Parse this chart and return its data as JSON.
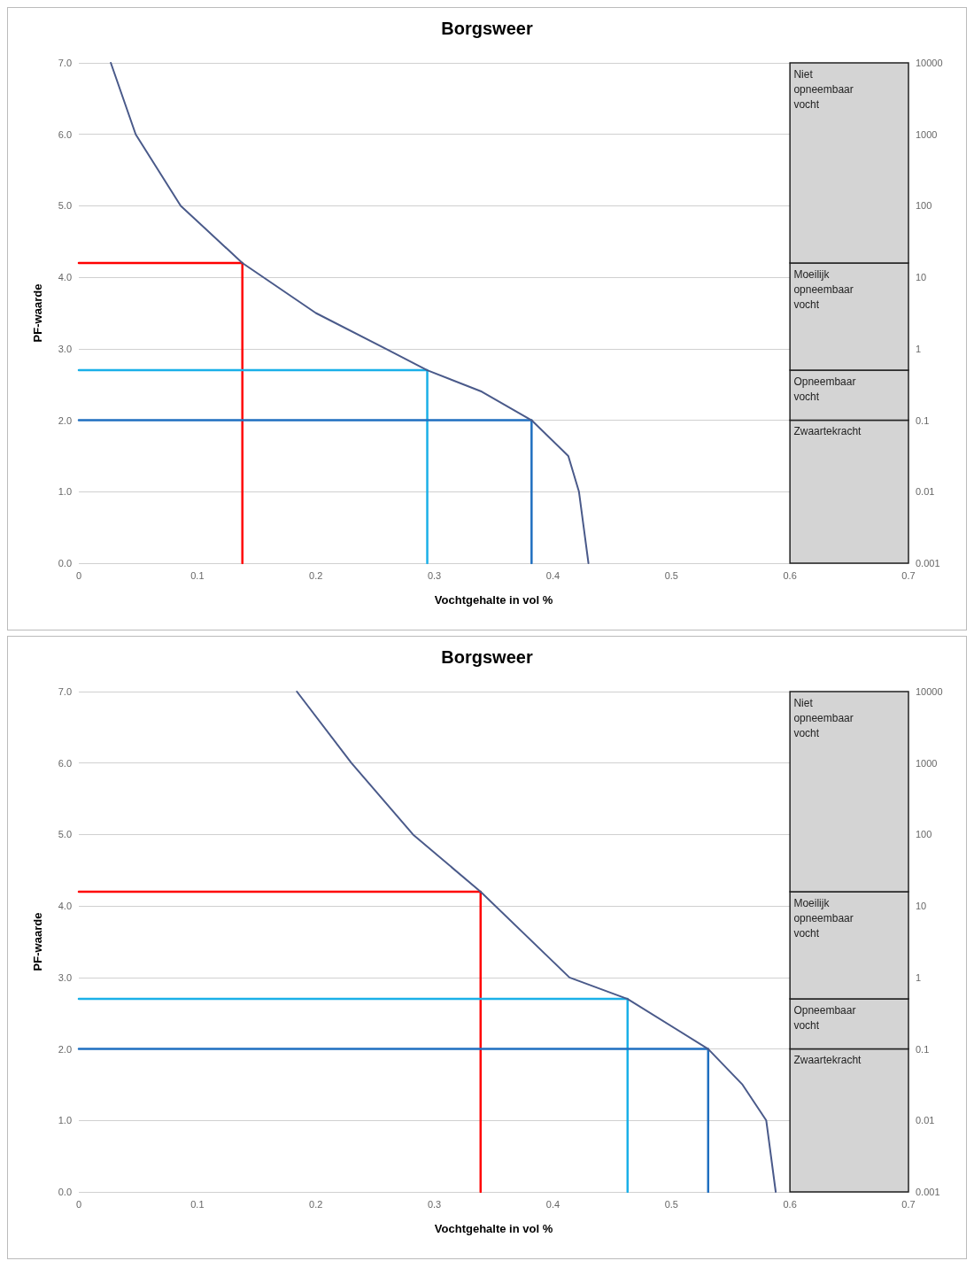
{
  "chart_data": [
    {
      "type": "line",
      "title": "Borgsweer",
      "xlabel": "Vochtgehalte in vol %",
      "ylabel": "PF-waarde",
      "xlim": [
        0,
        0.7
      ],
      "xticks": [
        0,
        0.1,
        0.2,
        0.3,
        0.4,
        0.5,
        0.6,
        0.7
      ],
      "ylim": [
        0,
        7
      ],
      "yticks": [
        {
          "value": 0,
          "label": "0.0"
        },
        {
          "value": 1,
          "label": "1.0"
        },
        {
          "value": 2,
          "label": "2.0"
        },
        {
          "value": 3,
          "label": "3.0"
        },
        {
          "value": 4,
          "label": "4.0"
        },
        {
          "value": 5,
          "label": "5.0"
        },
        {
          "value": 6,
          "label": "6.0"
        },
        {
          "value": 7,
          "label": "7.0"
        }
      ],
      "y2lim": [
        0.001,
        10000
      ],
      "y2ticks": [
        0.001,
        0.01,
        0.1,
        1,
        10,
        100,
        1000,
        10000
      ],
      "log": "y2",
      "grid": "y",
      "marker": "none",
      "line_style": "solid",
      "bands": [
        {
          "axis": "y",
          "from": 0,
          "to": 2,
          "label": "Zwaartekracht",
          "color": "#d4d4d4"
        },
        {
          "axis": "y",
          "from": 2,
          "to": 2.7,
          "label": "Opneembaar vocht",
          "color": "#d4d4d4"
        },
        {
          "axis": "y",
          "from": 2.7,
          "to": 4.2,
          "label": "Moeilijk opneembaar vocht",
          "color": "#d4d4d4"
        },
        {
          "axis": "y",
          "from": 4.2,
          "to": 7,
          "label": "Niet opneembaar vocht",
          "color": "#d4d4d4"
        }
      ],
      "series": [
        {
          "color": "#4a5a8a",
          "x": [
            0.027,
            0.048,
            0.086,
            0.138,
            0.2,
            0.259,
            0.294,
            0.34,
            0.382,
            0.413,
            0.422,
            0.426,
            0.43
          ],
          "values": [
            7,
            6,
            5,
            4.2,
            3.5,
            3,
            2.7,
            2.4,
            2,
            1.5,
            1,
            0.5,
            0
          ]
        },
        {
          "color": "#ff0000",
          "x": [
            0,
            0.138,
            0.138
          ],
          "values": [
            4.2,
            4.2,
            0
          ]
        },
        {
          "color": "#1ab0e8",
          "x": [
            0,
            0.294,
            0.294
          ],
          "values": [
            2.7,
            2.7,
            0
          ]
        },
        {
          "color": "#1f6fc0",
          "x": [
            0,
            0.382,
            0.382
          ],
          "values": [
            2,
            2,
            0
          ]
        }
      ]
    },
    {
      "type": "line",
      "title": "Borgsweer",
      "xlabel": "Vochtgehalte in vol %",
      "ylabel": "PF-waarde",
      "xlim": [
        0,
        0.7
      ],
      "xticks": [
        0,
        0.1,
        0.2,
        0.3,
        0.4,
        0.5,
        0.6,
        0.7
      ],
      "ylim": [
        0,
        7
      ],
      "yticks": [
        {
          "value": 0,
          "label": "0.0"
        },
        {
          "value": 1,
          "label": "1.0"
        },
        {
          "value": 2,
          "label": "2.0"
        },
        {
          "value": 3,
          "label": "3.0"
        },
        {
          "value": 4,
          "label": "4.0"
        },
        {
          "value": 5,
          "label": "5.0"
        },
        {
          "value": 6,
          "label": "6.0"
        },
        {
          "value": 7,
          "label": "7.0"
        }
      ],
      "y2lim": [
        0.001,
        10000
      ],
      "y2ticks": [
        0.001,
        0.01,
        0.1,
        1,
        10,
        100,
        1000,
        10000
      ],
      "log": "y2",
      "grid": "y",
      "marker": "none",
      "line_style": "solid",
      "bands": [
        {
          "axis": "y",
          "from": 0,
          "to": 2,
          "label": "Zwaartekracht",
          "color": "#d4d4d4"
        },
        {
          "axis": "y",
          "from": 2,
          "to": 2.7,
          "label": "Opneembaar vocht",
          "color": "#d4d4d4"
        },
        {
          "axis": "y",
          "from": 2.7,
          "to": 4.2,
          "label": "Moeilijk opneembaar vocht",
          "color": "#d4d4d4"
        },
        {
          "axis": "y",
          "from": 4.2,
          "to": 7,
          "label": "Niet opneembaar vocht",
          "color": "#d4d4d4"
        }
      ],
      "series": [
        {
          "color": "#4a5a8a",
          "x": [
            0.184,
            0.23,
            0.282,
            0.339,
            0.414,
            0.463,
            0.531,
            0.56,
            0.58,
            0.588
          ],
          "values": [
            7,
            6,
            5,
            4.2,
            3,
            2.7,
            2,
            1.5,
            1,
            0
          ]
        },
        {
          "color": "#ff0000",
          "x": [
            0,
            0.339,
            0.339
          ],
          "values": [
            4.2,
            4.2,
            0
          ]
        },
        {
          "color": "#1ab0e8",
          "x": [
            0,
            0.463,
            0.463
          ],
          "values": [
            2.7,
            2.7,
            0
          ]
        },
        {
          "color": "#1f6fc0",
          "x": [
            0,
            0.531,
            0.531
          ],
          "values": [
            2,
            2,
            0
          ]
        }
      ]
    }
  ]
}
